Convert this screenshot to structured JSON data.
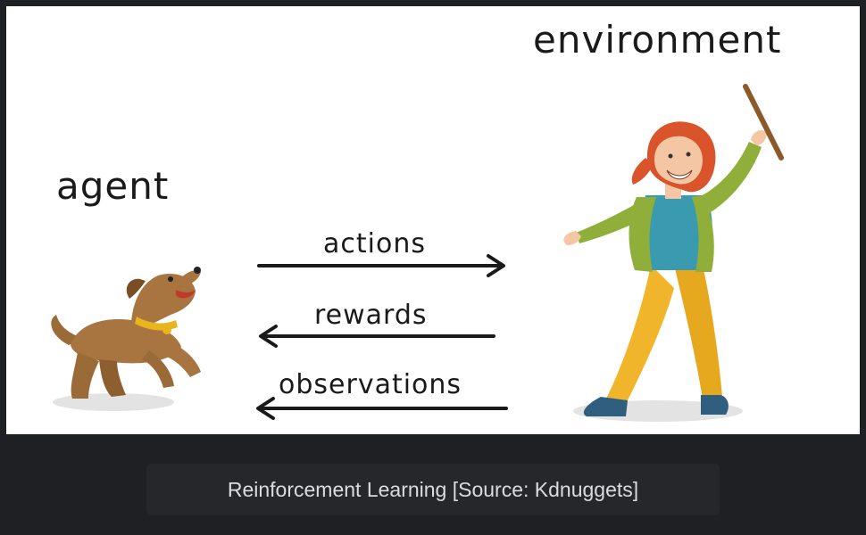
{
  "diagram": {
    "labels": {
      "agent": "agent",
      "environment": "environment",
      "actions": "actions",
      "rewards": "rewards",
      "observations": "observations"
    },
    "illustrations": {
      "agent": "dog-icon",
      "environment": "woman-with-stick-icon"
    }
  },
  "caption": {
    "text": "Reinforcement Learning [Source: Kdnuggets]"
  },
  "colors": {
    "background": "#1f2023",
    "figure_bg": "#ffffff",
    "caption_bg": "#26272b",
    "caption_text": "#dcdcdc",
    "ink": "#1a1a1a"
  }
}
